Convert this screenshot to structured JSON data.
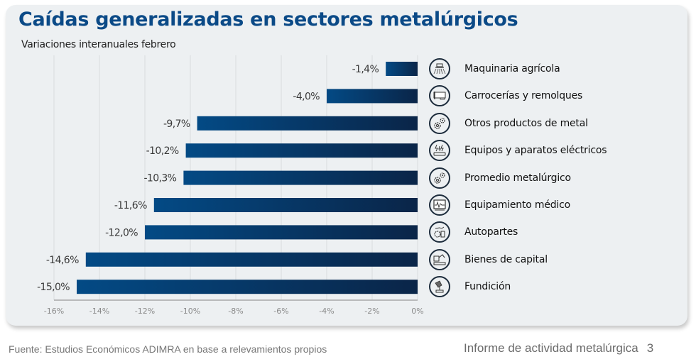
{
  "header": {
    "title": "Caídas generalizadas en sectores metalúrgicos",
    "subtitle": "Variaciones interanuales febrero"
  },
  "colors": {
    "title": "#0b4a87",
    "bar_gradient_start": "#034a85",
    "bar_gradient_end": "#0a2548",
    "card_background": "#edf0f2",
    "icon_border": "#1d2c3c"
  },
  "chart_data": {
    "type": "bar",
    "orientation": "horizontal",
    "title": "Caídas generalizadas en sectores metalúrgicos",
    "subtitle": "Variaciones interanuales febrero",
    "xlabel": "",
    "ylabel": "",
    "xlim": [
      -16,
      0
    ],
    "grid": true,
    "x_ticks": [
      -16,
      -14,
      -12,
      -10,
      -8,
      -6,
      -4,
      -2,
      0
    ],
    "x_tick_labels": [
      "-16%",
      "-14%",
      "-12%",
      "-10%",
      "-8%",
      "-6%",
      "-4%",
      "-2%",
      "0%"
    ],
    "categories": [
      "Maquinaria agrícola",
      "Carrocerías y remolques",
      "Otros productos de metal",
      "Equipos y aparatos eléctricos",
      "Promedio metalúrgico",
      "Equipamiento médico",
      "Autopartes",
      "Bienes de capital",
      "Fundición"
    ],
    "values": [
      -1.4,
      -4.0,
      -9.7,
      -10.2,
      -10.3,
      -11.6,
      -12.0,
      -14.6,
      -15.0
    ],
    "value_labels": [
      "-1,4%",
      "-4,0%",
      "-9,7%",
      "-10,2%",
      "-10,3%",
      "-11,6%",
      "-12,0%",
      "-14,6%",
      "-15,0%"
    ],
    "legend_placement": "right",
    "icons": [
      "tractor-icon",
      "trailer-icon",
      "gears-icon",
      "electrical-equipment-icon",
      "gears-icon",
      "medical-monitor-icon",
      "autoparts-icon",
      "robotic-arm-icon",
      "foundry-ladle-icon"
    ]
  },
  "footer": {
    "source": "Fuente: Estudios Económicos ADIMRA en base a relevamientos propios",
    "report_title": "Informe de actividad metalúrgica",
    "page_number": "3"
  }
}
